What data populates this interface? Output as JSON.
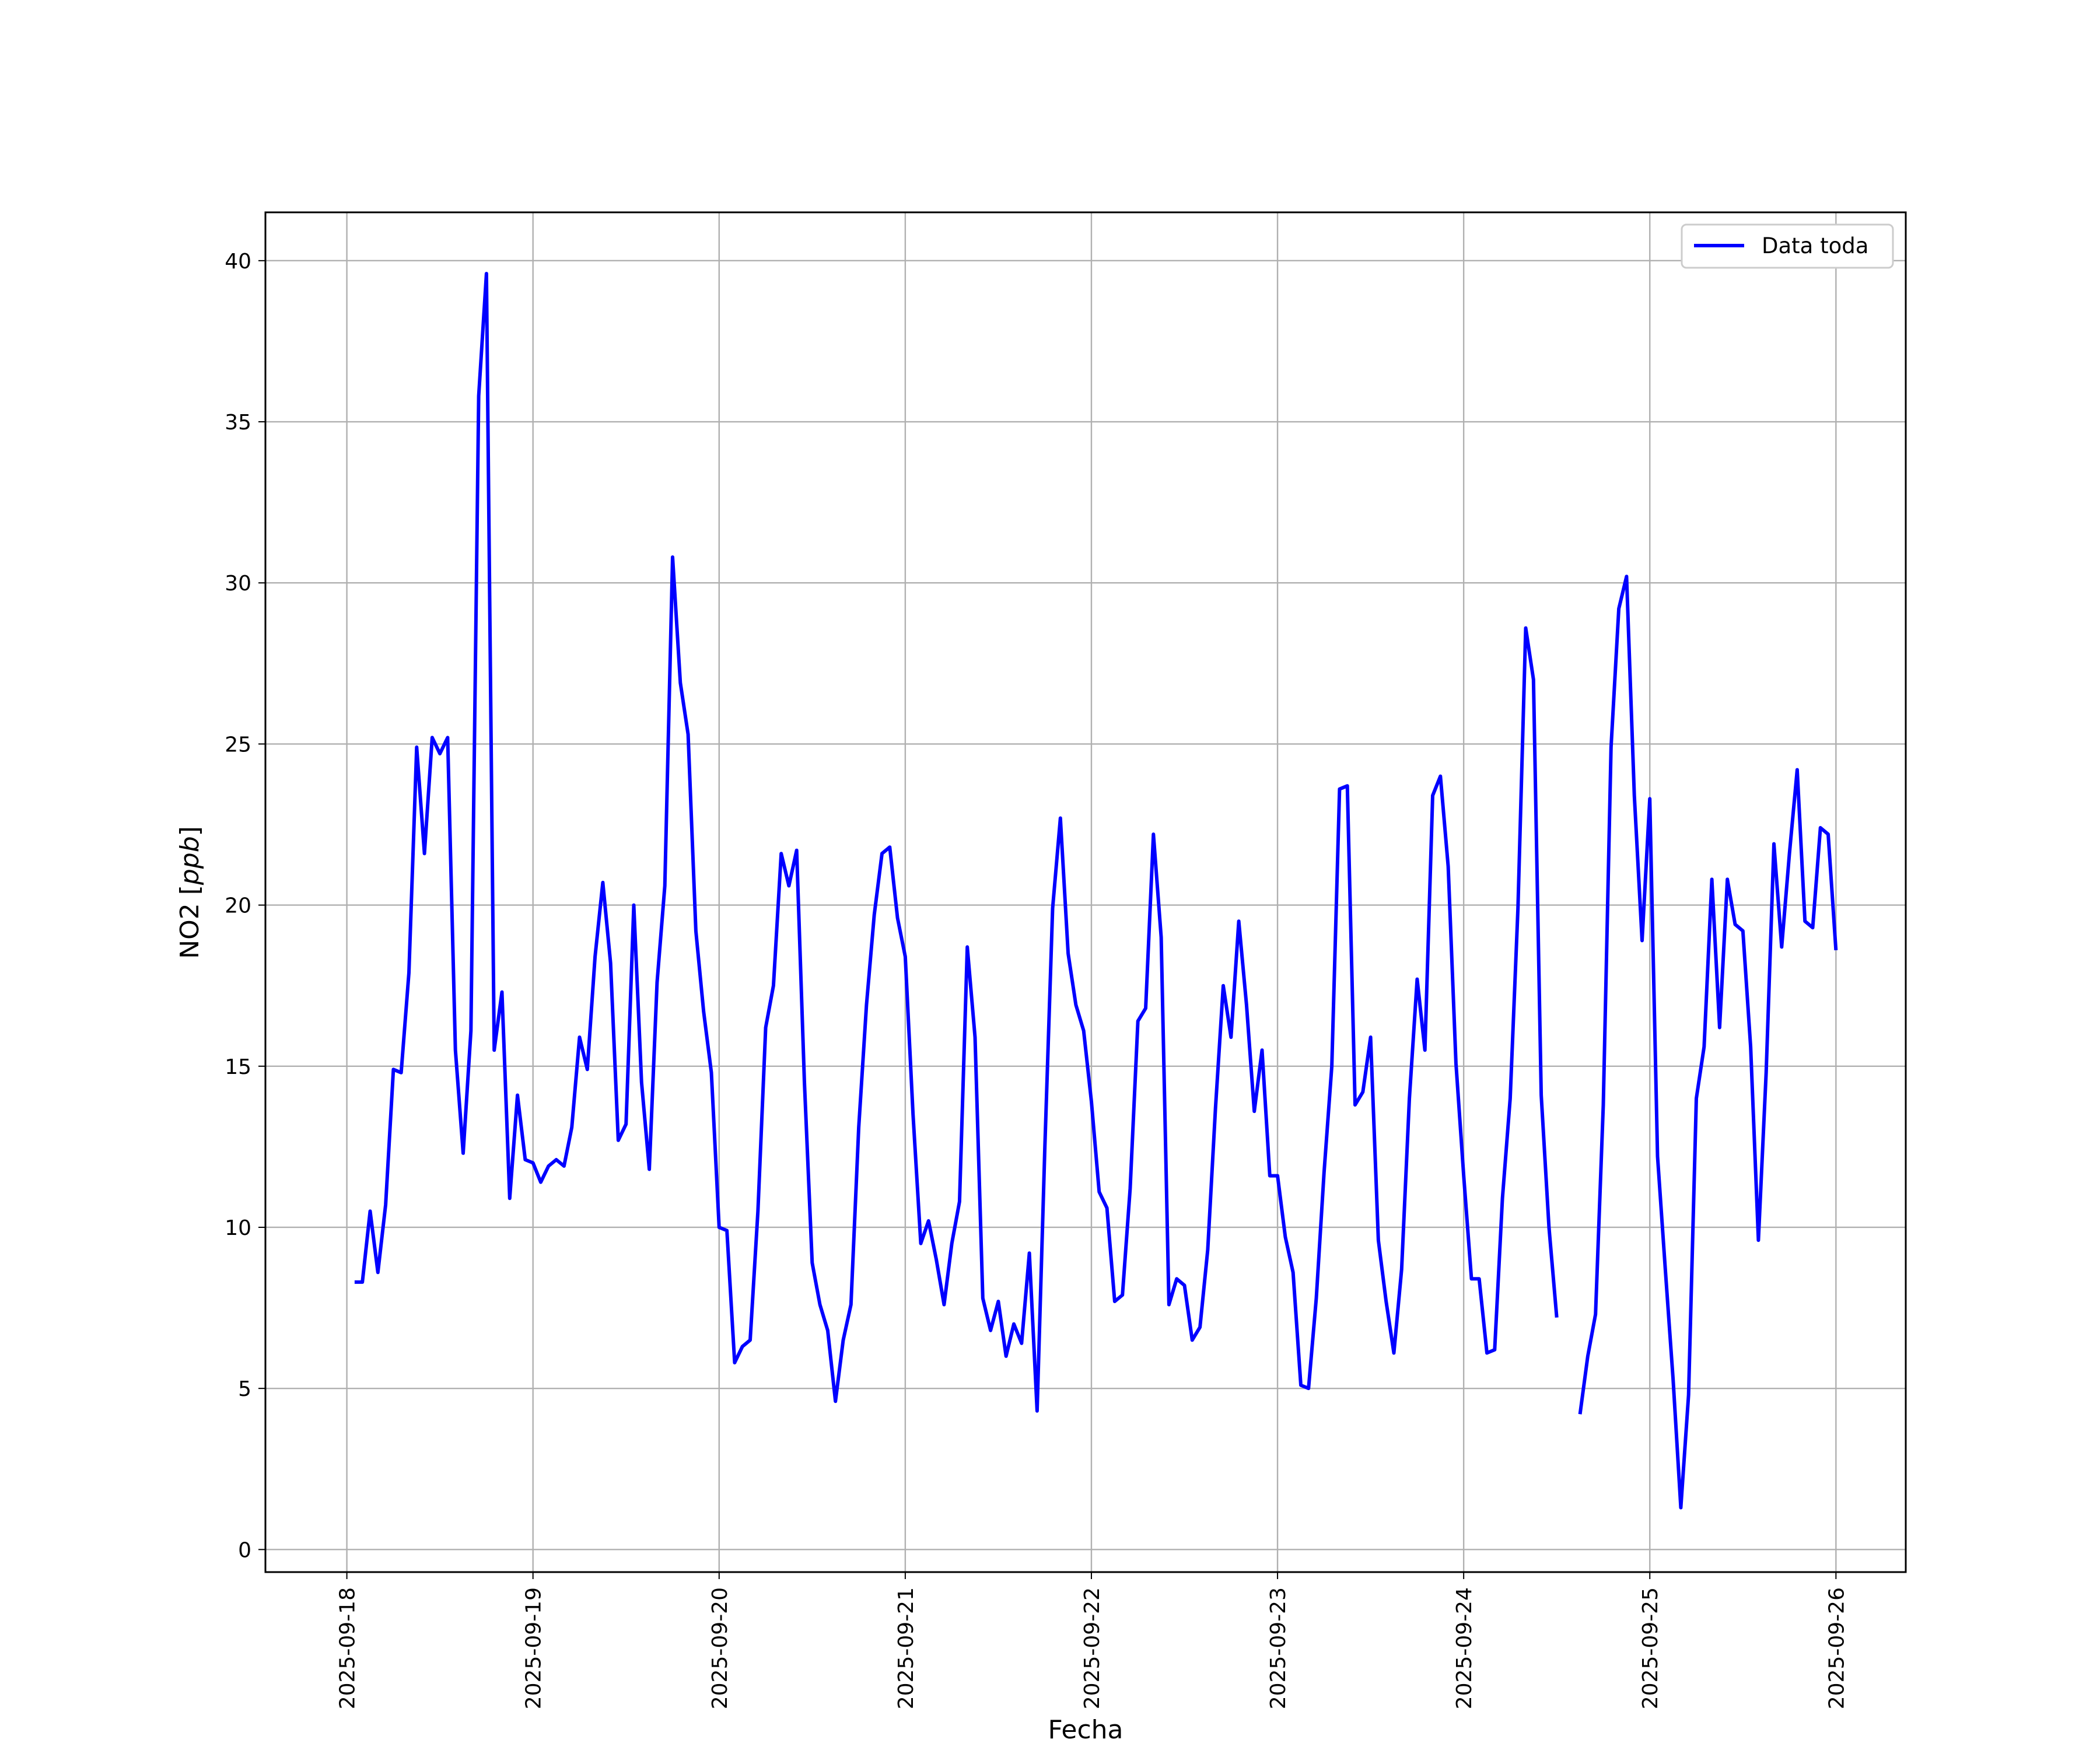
{
  "chart_data": {
    "type": "line",
    "title": "",
    "xlabel": "Fecha",
    "ylabel_prefix": "NO2 [",
    "ylabel_unit": "ppb",
    "ylabel_suffix": "]",
    "x_ticks": [
      "2025-09-18",
      "2025-09-19",
      "2025-09-20",
      "2025-09-21",
      "2025-09-22",
      "2025-09-23",
      "2025-09-24",
      "2025-09-25",
      "2025-09-26"
    ],
    "y_ticks": [
      0,
      5,
      10,
      15,
      20,
      25,
      30,
      35,
      40
    ],
    "xlim": [
      "2025-09-17T13:30",
      "2025-09-26T09:00"
    ],
    "ylim": [
      -0.7,
      41.5
    ],
    "grid": true,
    "legend": "top-right",
    "line_color": "#0000ff",
    "series": [
      {
        "name": "Data toda",
        "values": [
          [
            "2025-09-18T01:00",
            8.3
          ],
          [
            "2025-09-18T02:00",
            8.3
          ],
          [
            "2025-09-18T03:00",
            10.5
          ],
          [
            "2025-09-18T04:00",
            8.6
          ],
          [
            "2025-09-18T05:00",
            10.7
          ],
          [
            "2025-09-18T06:00",
            14.9
          ],
          [
            "2025-09-18T07:00",
            14.8
          ],
          [
            "2025-09-18T08:00",
            17.9
          ],
          [
            "2025-09-18T09:00",
            24.9
          ],
          [
            "2025-09-18T10:00",
            21.6
          ],
          [
            "2025-09-18T11:00",
            25.2
          ],
          [
            "2025-09-18T12:00",
            24.7
          ],
          [
            "2025-09-18T13:00",
            25.2
          ],
          [
            "2025-09-18T14:00",
            15.5
          ],
          [
            "2025-09-18T15:00",
            12.3
          ],
          [
            "2025-09-18T16:00",
            16.1
          ],
          [
            "2025-09-18T17:00",
            35.8
          ],
          [
            "2025-09-18T18:00",
            39.6
          ],
          [
            "2025-09-18T19:00",
            15.5
          ],
          [
            "2025-09-18T20:00",
            17.3
          ],
          [
            "2025-09-18T21:00",
            10.9
          ],
          [
            "2025-09-18T22:00",
            14.1
          ],
          [
            "2025-09-18T23:00",
            12.1
          ],
          [
            "2025-09-19T00:00",
            12.0
          ],
          [
            "2025-09-19T01:00",
            11.4
          ],
          [
            "2025-09-19T02:00",
            11.9
          ],
          [
            "2025-09-19T03:00",
            12.1
          ],
          [
            "2025-09-19T04:00",
            11.9
          ],
          [
            "2025-09-19T05:00",
            13.1
          ],
          [
            "2025-09-19T06:00",
            15.9
          ],
          [
            "2025-09-19T07:00",
            14.9
          ],
          [
            "2025-09-19T08:00",
            18.4
          ],
          [
            "2025-09-19T09:00",
            20.7
          ],
          [
            "2025-09-19T10:00",
            18.2
          ],
          [
            "2025-09-19T11:00",
            12.7
          ],
          [
            "2025-09-19T12:00",
            13.2
          ],
          [
            "2025-09-19T13:00",
            20.0
          ],
          [
            "2025-09-19T14:00",
            14.5
          ],
          [
            "2025-09-19T15:00",
            11.8
          ],
          [
            "2025-09-19T16:00",
            17.6
          ],
          [
            "2025-09-19T17:00",
            20.6
          ],
          [
            "2025-09-19T18:00",
            30.8
          ],
          [
            "2025-09-19T19:00",
            26.9
          ],
          [
            "2025-09-19T20:00",
            25.3
          ],
          [
            "2025-09-19T21:00",
            19.2
          ],
          [
            "2025-09-19T22:00",
            16.7
          ],
          [
            "2025-09-19T23:00",
            14.8
          ],
          [
            "2025-09-20T00:00",
            10.0
          ],
          [
            "2025-09-20T01:00",
            9.9
          ],
          [
            "2025-09-20T02:00",
            5.8
          ],
          [
            "2025-09-20T03:00",
            6.3
          ],
          [
            "2025-09-20T04:00",
            6.5
          ],
          [
            "2025-09-20T05:00",
            10.5
          ],
          [
            "2025-09-20T06:00",
            16.2
          ],
          [
            "2025-09-20T07:00",
            17.5
          ],
          [
            "2025-09-20T08:00",
            21.6
          ],
          [
            "2025-09-20T09:00",
            20.6
          ],
          [
            "2025-09-20T10:00",
            21.7
          ],
          [
            "2025-09-20T11:00",
            14.5
          ],
          [
            "2025-09-20T12:00",
            8.9
          ],
          [
            "2025-09-20T13:00",
            7.6
          ],
          [
            "2025-09-20T14:00",
            6.8
          ],
          [
            "2025-09-20T15:00",
            4.6
          ],
          [
            "2025-09-20T16:00",
            6.5
          ],
          [
            "2025-09-20T17:00",
            7.6
          ],
          [
            "2025-09-20T18:00",
            13.1
          ],
          [
            "2025-09-20T19:00",
            16.9
          ],
          [
            "2025-09-20T20:00",
            19.7
          ],
          [
            "2025-09-20T21:00",
            21.6
          ],
          [
            "2025-09-20T22:00",
            21.8
          ],
          [
            "2025-09-20T23:00",
            19.6
          ],
          [
            "2025-09-21T00:00",
            18.4
          ],
          [
            "2025-09-21T01:00",
            13.5
          ],
          [
            "2025-09-21T02:00",
            9.5
          ],
          [
            "2025-09-21T03:00",
            10.2
          ],
          [
            "2025-09-21T04:00",
            9.0
          ],
          [
            "2025-09-21T05:00",
            7.6
          ],
          [
            "2025-09-21T06:00",
            9.5
          ],
          [
            "2025-09-21T07:00",
            10.8
          ],
          [
            "2025-09-21T08:00",
            18.7
          ],
          [
            "2025-09-21T09:00",
            15.9
          ],
          [
            "2025-09-21T10:00",
            7.8
          ],
          [
            "2025-09-21T11:00",
            6.8
          ],
          [
            "2025-09-21T12:00",
            7.7
          ],
          [
            "2025-09-21T13:00",
            6.0
          ],
          [
            "2025-09-21T14:00",
            7.0
          ],
          [
            "2025-09-21T15:00",
            6.4
          ],
          [
            "2025-09-21T16:00",
            9.2
          ],
          [
            "2025-09-21T17:00",
            4.3
          ],
          [
            "2025-09-21T18:00",
            12.5
          ],
          [
            "2025-09-21T19:00",
            19.9
          ],
          [
            "2025-09-21T20:00",
            22.7
          ],
          [
            "2025-09-21T21:00",
            18.5
          ],
          [
            "2025-09-21T22:00",
            16.9
          ],
          [
            "2025-09-21T23:00",
            16.1
          ],
          [
            "2025-09-22T00:00",
            13.9
          ],
          [
            "2025-09-22T01:00",
            11.1
          ],
          [
            "2025-09-22T02:00",
            10.6
          ],
          [
            "2025-09-22T03:00",
            7.7
          ],
          [
            "2025-09-22T04:00",
            7.9
          ],
          [
            "2025-09-22T05:00",
            11.2
          ],
          [
            "2025-09-22T06:00",
            16.4
          ],
          [
            "2025-09-22T07:00",
            16.8
          ],
          [
            "2025-09-22T08:00",
            22.2
          ],
          [
            "2025-09-22T09:00",
            19.0
          ],
          [
            "2025-09-22T10:00",
            7.6
          ],
          [
            "2025-09-22T11:00",
            8.4
          ],
          [
            "2025-09-22T12:00",
            8.2
          ],
          [
            "2025-09-22T13:00",
            6.5
          ],
          [
            "2025-09-22T14:00",
            6.9
          ],
          [
            "2025-09-22T15:00",
            9.3
          ],
          [
            "2025-09-22T16:00",
            13.7
          ],
          [
            "2025-09-22T17:00",
            17.5
          ],
          [
            "2025-09-22T18:00",
            15.9
          ],
          [
            "2025-09-22T19:00",
            19.5
          ],
          [
            "2025-09-22T20:00",
            16.9
          ],
          [
            "2025-09-22T21:00",
            13.6
          ],
          [
            "2025-09-22T22:00",
            15.5
          ],
          [
            "2025-09-22T23:00",
            11.6
          ],
          [
            "2025-09-23T00:00",
            11.6
          ],
          [
            "2025-09-23T01:00",
            9.7
          ],
          [
            "2025-09-23T02:00",
            8.6
          ],
          [
            "2025-09-23T03:00",
            5.1
          ],
          [
            "2025-09-23T04:00",
            5.0
          ],
          [
            "2025-09-23T05:00",
            7.8
          ],
          [
            "2025-09-23T06:00",
            11.7
          ],
          [
            "2025-09-23T07:00",
            15.0
          ],
          [
            "2025-09-23T08:00",
            23.6
          ],
          [
            "2025-09-23T09:00",
            23.7
          ],
          [
            "2025-09-23T10:00",
            13.8
          ],
          [
            "2025-09-23T11:00",
            14.2
          ],
          [
            "2025-09-23T12:00",
            15.9
          ],
          [
            "2025-09-23T13:00",
            9.6
          ],
          [
            "2025-09-23T14:00",
            7.7
          ],
          [
            "2025-09-23T15:00",
            6.1
          ],
          [
            "2025-09-23T16:00",
            8.7
          ],
          [
            "2025-09-23T17:00",
            14.0
          ],
          [
            "2025-09-23T18:00",
            17.7
          ],
          [
            "2025-09-23T19:00",
            15.5
          ],
          [
            "2025-09-23T20:00",
            23.4
          ],
          [
            "2025-09-23T21:00",
            24.0
          ],
          [
            "2025-09-23T22:00",
            21.2
          ],
          [
            "2025-09-23T23:00",
            15.1
          ],
          [
            "2025-09-24T00:00",
            11.6
          ],
          [
            "2025-09-24T01:00",
            8.4
          ],
          [
            "2025-09-24T02:00",
            8.4
          ],
          [
            "2025-09-24T03:00",
            6.1
          ],
          [
            "2025-09-24T04:00",
            6.2
          ],
          [
            "2025-09-24T05:00",
            10.9
          ],
          [
            "2025-09-24T06:00",
            14.0
          ],
          [
            "2025-09-24T07:00",
            19.9
          ],
          [
            "2025-09-24T08:00",
            28.6
          ],
          [
            "2025-09-24T09:00",
            27.0
          ],
          [
            "2025-09-24T10:00",
            14.1
          ],
          [
            "2025-09-24T11:00",
            10.0
          ],
          [
            "2025-09-24T12:00",
            7.2
          ],
          null,
          [
            "2025-09-24T15:00",
            4.2
          ],
          [
            "2025-09-24T16:00",
            6.0
          ],
          [
            "2025-09-24T17:00",
            7.3
          ],
          [
            "2025-09-24T18:00",
            13.8
          ],
          [
            "2025-09-24T19:00",
            24.9
          ],
          [
            "2025-09-24T20:00",
            29.2
          ],
          [
            "2025-09-24T21:00",
            30.2
          ],
          [
            "2025-09-24T22:00",
            23.4
          ],
          [
            "2025-09-24T23:00",
            18.9
          ],
          [
            "2025-09-25T00:00",
            23.3
          ],
          [
            "2025-09-25T01:00",
            12.2
          ],
          [
            "2025-09-25T02:00",
            8.7
          ],
          [
            "2025-09-25T03:00",
            5.3
          ],
          [
            "2025-09-25T04:00",
            1.3
          ],
          [
            "2025-09-25T05:00",
            4.8
          ],
          [
            "2025-09-25T06:00",
            14.0
          ],
          [
            "2025-09-25T07:00",
            15.6
          ],
          [
            "2025-09-25T08:00",
            20.8
          ],
          [
            "2025-09-25T09:00",
            16.2
          ],
          [
            "2025-09-25T10:00",
            20.8
          ],
          [
            "2025-09-25T11:00",
            19.4
          ],
          [
            "2025-09-25T12:00",
            19.2
          ],
          [
            "2025-09-25T13:00",
            15.6
          ],
          [
            "2025-09-25T14:00",
            9.6
          ],
          [
            "2025-09-25T15:00",
            14.8
          ],
          [
            "2025-09-25T16:00",
            21.9
          ],
          [
            "2025-09-25T17:00",
            18.7
          ],
          [
            "2025-09-25T18:00",
            21.6
          ],
          [
            "2025-09-25T19:00",
            24.2
          ],
          [
            "2025-09-25T20:00",
            19.5
          ],
          [
            "2025-09-25T21:00",
            19.3
          ],
          [
            "2025-09-25T22:00",
            22.4
          ],
          [
            "2025-09-25T23:00",
            22.2
          ],
          [
            "2025-09-26T00:00",
            18.6
          ]
        ]
      }
    ]
  }
}
